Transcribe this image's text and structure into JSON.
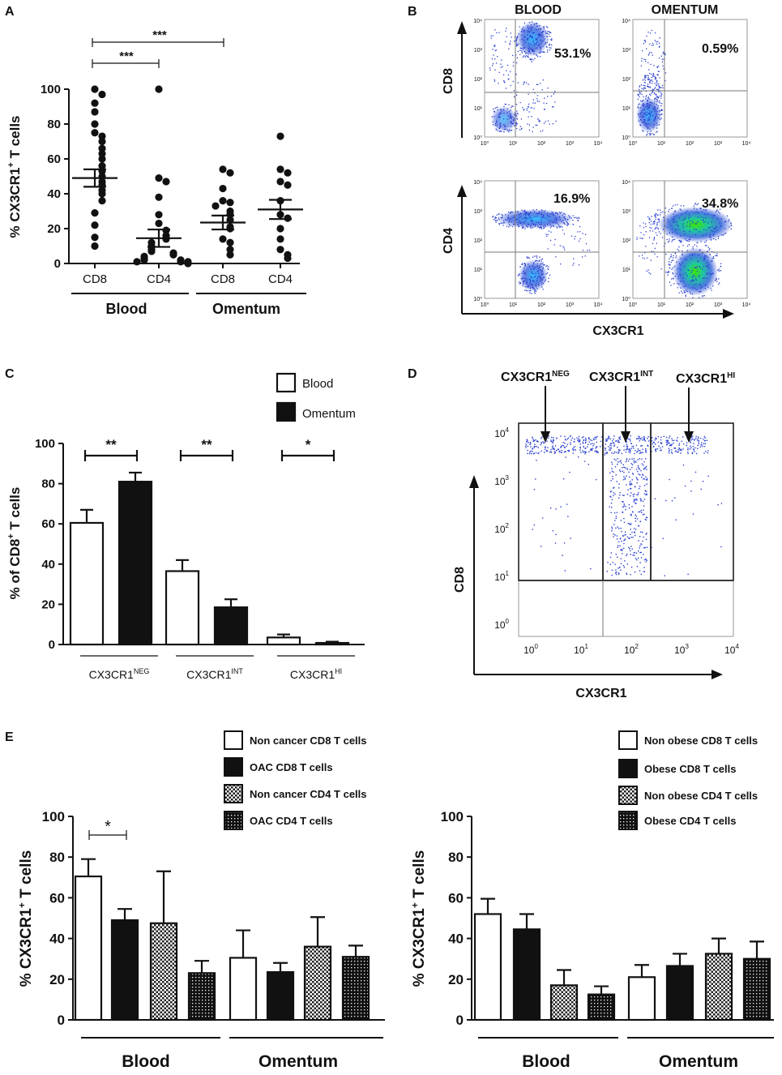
{
  "chart_data": [
    {
      "panel": "A",
      "type": "scatter",
      "ylabel_main": "% CX3CR1",
      "ylabel_sup": "+",
      "ylabel_rest": " T cells",
      "ylim": [
        0,
        100
      ],
      "yticks": [
        "0",
        "20",
        "40",
        "60",
        "80",
        "100"
      ],
      "categories": [
        "CD8",
        "CD4",
        "CD8",
        "CD4"
      ],
      "groups": [
        "Blood",
        "Omentum"
      ],
      "significance": [
        "***",
        "***"
      ],
      "series": [
        {
          "name": "Blood CD8",
          "mean": 49,
          "sem": 5,
          "values": [
            100,
            97,
            92,
            87,
            80,
            75,
            73,
            70,
            66,
            63,
            60,
            56,
            53,
            50,
            47,
            45,
            42,
            40,
            36,
            29,
            22,
            15,
            10
          ]
        },
        {
          "name": "Blood CD4",
          "mean": 14.5,
          "sem": 5,
          "values": [
            100,
            49,
            47,
            38,
            28,
            23,
            19,
            16,
            14,
            12,
            10,
            8,
            7,
            6,
            5,
            4,
            3,
            2,
            2,
            1,
            1,
            1,
            0
          ]
        },
        {
          "name": "Omentum CD8",
          "mean": 23.5,
          "sem": 4,
          "values": [
            54,
            52,
            43,
            36,
            35,
            33,
            30,
            28,
            25,
            21,
            20,
            14,
            12,
            8,
            5
          ]
        },
        {
          "name": "Omentum CD4",
          "mean": 31,
          "sem": 5.5,
          "values": [
            73,
            54,
            52,
            47,
            45,
            36,
            28,
            26,
            20,
            14,
            8,
            5,
            3
          ]
        }
      ]
    },
    {
      "panel": "B",
      "type": "flow-cytometry",
      "columns": [
        "BLOOD",
        "OMENTUM"
      ],
      "row_labels": [
        "CD8",
        "CD4"
      ],
      "xlabel": "CX3CR1",
      "percentages": [
        "53.1%",
        "0.59%",
        "16.9%",
        "34.8%"
      ],
      "tick_labels": [
        "10⁰",
        "10¹",
        "10²",
        "10³",
        "10⁴"
      ]
    },
    {
      "panel": "C",
      "type": "bar",
      "ylabel_main": "% of  CD8",
      "ylabel_sup": "+",
      "ylabel_rest": " T cells",
      "ylim": [
        0,
        100
      ],
      "yticks": [
        "0",
        "20",
        "40",
        "60",
        "80",
        "100"
      ],
      "categories": [
        {
          "base": "CX3CR1",
          "sup": "NEG"
        },
        {
          "base": "CX3CR1",
          "sup": "INT"
        },
        {
          "base": "CX3CR1",
          "sup": "HI"
        }
      ],
      "legend": [
        "Blood",
        "Omentum"
      ],
      "significance": [
        "**",
        "**",
        "*"
      ],
      "series": [
        {
          "name": "Blood",
          "values": [
            60.5,
            36.5,
            3.5
          ],
          "errors": [
            6.5,
            5.5,
            1.5
          ]
        },
        {
          "name": "Omentum",
          "values": [
            81,
            18.5,
            0.8
          ],
          "errors": [
            4.5,
            4,
            0.6
          ]
        }
      ]
    },
    {
      "panel": "D",
      "type": "flow-cytometry",
      "gates": [
        {
          "base": "CX3CR1",
          "sup": "NEG"
        },
        {
          "base": "CX3CR1",
          "sup": "INT"
        },
        {
          "base": "CX3CR1",
          "sup": "HI"
        }
      ],
      "ylabel": "CD8",
      "xlabel": "CX3CR1",
      "tick_base": "10",
      "tick_exps": [
        "0",
        "1",
        "2",
        "3",
        "4"
      ]
    },
    {
      "panel": "E-left",
      "type": "bar",
      "ylabel_main": "% CX3CR1",
      "ylabel_sup": "+",
      "ylabel_rest": " T cells",
      "ylim": [
        0,
        100
      ],
      "yticks": [
        "0",
        "20",
        "40",
        "60",
        "80",
        "100"
      ],
      "groups": [
        "Blood",
        "Omentum"
      ],
      "legend": [
        "Non cancer CD8 T cells",
        "OAC CD8 T cells",
        "Non cancer CD4 T cells",
        "OAC CD4 T cells"
      ],
      "significance": [
        "*"
      ],
      "series": [
        {
          "name": "Non cancer CD8 T cells",
          "values": [
            70.5,
            30.5
          ],
          "errors": [
            8.5,
            13.5
          ]
        },
        {
          "name": "OAC CD8 T cells",
          "values": [
            49,
            23.5
          ],
          "errors": [
            5.5,
            4.5
          ]
        },
        {
          "name": "Non cancer CD4 T cells",
          "values": [
            47.5,
            36
          ],
          "errors": [
            25.5,
            14.5
          ]
        },
        {
          "name": "OAC CD4 T cells",
          "values": [
            23,
            31
          ],
          "errors": [
            6,
            5.5
          ]
        }
      ]
    },
    {
      "panel": "E-right",
      "type": "bar",
      "ylabel_main": "% CX3CR1",
      "ylabel_sup": "+",
      "ylabel_rest": " T cells",
      "ylim": [
        0,
        100
      ],
      "yticks": [
        "0",
        "20",
        "40",
        "60",
        "80",
        "100"
      ],
      "groups": [
        "Blood",
        "Omentum"
      ],
      "legend": [
        "Non obese CD8 T cells",
        "Obese CD8 T cells",
        "Non obese CD4 T cells",
        "Obese CD4 T cells"
      ],
      "series": [
        {
          "name": "Non obese CD8 T cells",
          "values": [
            52,
            21
          ],
          "errors": [
            7.5,
            6
          ]
        },
        {
          "name": "Obese CD8 T cells",
          "values": [
            44.5,
            26.5
          ],
          "errors": [
            7.5,
            6
          ]
        },
        {
          "name": "Non obese CD4 T cells",
          "values": [
            17,
            32.5
          ],
          "errors": [
            7.5,
            7.5
          ]
        },
        {
          "name": "Obese CD4 T cells",
          "values": [
            12.5,
            30
          ],
          "errors": [
            4,
            8.5
          ]
        }
      ]
    }
  ],
  "panel_letters": [
    "A",
    "B",
    "C",
    "D",
    "E"
  ]
}
